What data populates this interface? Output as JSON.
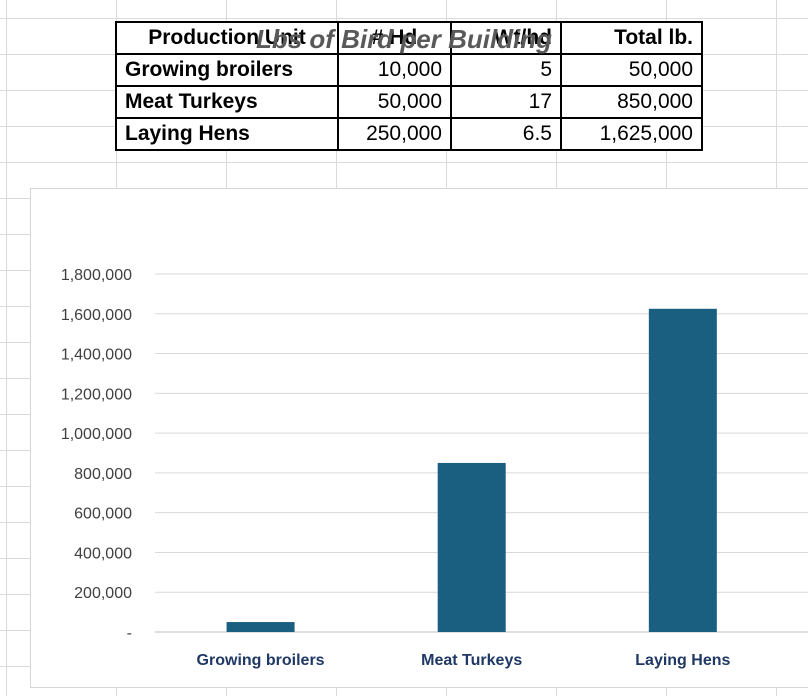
{
  "table": {
    "headers": [
      "Production Unit",
      "# Hd",
      "Wt/hd",
      "Total lb."
    ],
    "rows": [
      [
        "Growing broilers",
        "10,000",
        "5",
        "50,000"
      ],
      [
        "Meat Turkeys",
        "50,000",
        "17",
        "850,000"
      ],
      [
        "Laying Hens",
        "250,000",
        "6.5",
        "1,625,000"
      ]
    ]
  },
  "chart_data": {
    "type": "bar",
    "title": "Lbs of Bird per Building",
    "categories": [
      "Growing broilers",
      "Meat Turkeys",
      "Laying Hens"
    ],
    "values": [
      50000,
      850000,
      1625000
    ],
    "ylim": [
      0,
      1800000
    ],
    "yticks": [
      "-",
      "200,000",
      "400,000",
      "600,000",
      "800,000",
      "1,000,000",
      "1,200,000",
      "1,400,000",
      "1,600,000",
      "1,800,000"
    ],
    "grid": true,
    "bar_color": "#1a5f7f",
    "xlabel": "",
    "ylabel": ""
  }
}
